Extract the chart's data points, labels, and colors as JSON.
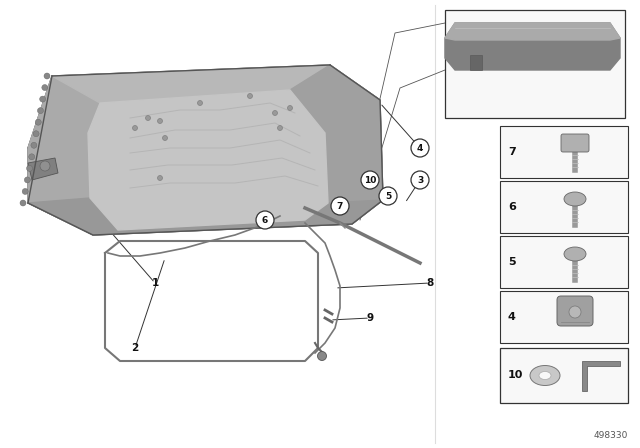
{
  "bg_color": "#ffffff",
  "part_number": "498330",
  "figure_size": [
    6.4,
    4.48
  ],
  "dpi": 100,
  "frame_outer_color": "#888888",
  "frame_surface_color": "#b0b0b0",
  "frame_inner_surface": "#c8c8c8",
  "frame_opening_color": "#d8d8d8",
  "frame_edge_dark": "#666666",
  "line_color": "#666666",
  "callout_bg": "#ffffff",
  "callout_border": "#333333",
  "text_color": "#111111",
  "box_border": "#333333",
  "box_fill": "#f8f8f8"
}
